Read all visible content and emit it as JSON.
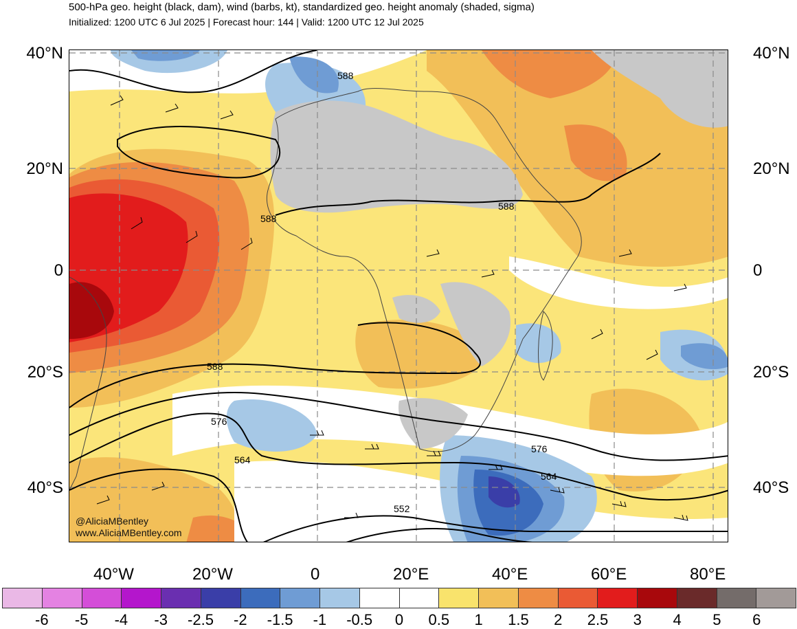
{
  "header": {
    "title": "500-hPa geo. height (black, dam), wind (barbs, kt), standardized geo. height anomaly (shaded, sigma)",
    "subtitle": "Initialized: 1200 UTC 6 Jul 2025 | Forecast hour: 144 | Valid: 1200 UTC 12 Jul 2025"
  },
  "map": {
    "lat_labels": [
      "40°N",
      "20°N",
      "0",
      "20°S",
      "40°S"
    ],
    "lon_labels": [
      "40°W",
      "20°W",
      "0",
      "20°E",
      "40°E",
      "60°E",
      "80°E"
    ],
    "contour_labels": [
      "588",
      "588",
      "588",
      "588",
      "576",
      "564",
      "576",
      "564",
      "552"
    ],
    "watermark": [
      "@AliciaMBentley",
      "www.AliciaMBentley.com"
    ],
    "colors": {
      "land_no_anomaly": "#c8c8c8",
      "contour_line": "#000000",
      "grid_line": "#8a8a8a"
    }
  },
  "colorbar": {
    "ticks": [
      "-6",
      "-5",
      "-4",
      "-3",
      "-2.5",
      "-2",
      "-1.5",
      "-1",
      "-0.5",
      "0",
      "0.5",
      "1",
      "1.5",
      "2",
      "2.5",
      "3",
      "4",
      "5",
      "6"
    ],
    "colors": [
      "#eab8e6",
      "#e482e2",
      "#d44ed8",
      "#b416cc",
      "#6a2fb0",
      "#3a3ea8",
      "#3c6cbc",
      "#6f9cd4",
      "#a6c8e6",
      "#ffffff",
      "#ffffff",
      "#f9e36c",
      "#f2bf58",
      "#ee8c44",
      "#ea5a34",
      "#e21c1c",
      "#a8080c",
      "#6a2a2a",
      "#746c6a",
      "#a29a98"
    ]
  }
}
